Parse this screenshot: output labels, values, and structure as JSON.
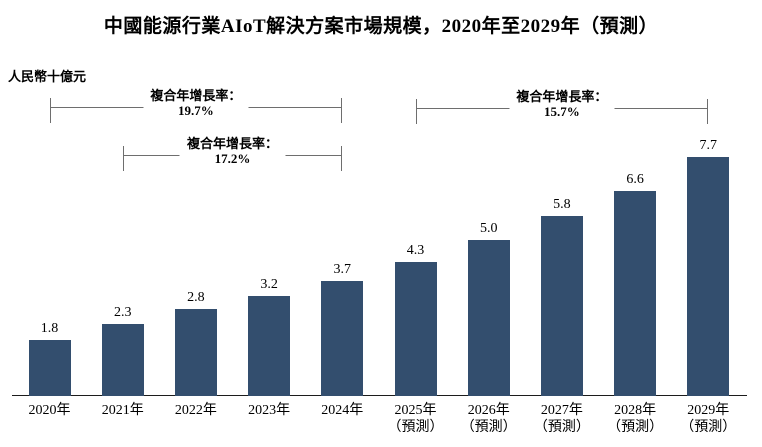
{
  "chart_data": {
    "type": "bar",
    "title": "中國能源行業AIoT解決方案市場規模，2020年至2029年（預測）",
    "ylabel": "人民幣十億元",
    "categories": [
      "2020年",
      "2021年",
      "2022年",
      "2023年",
      "2024年",
      "2025年",
      "2026年",
      "2027年",
      "2028年",
      "2029年"
    ],
    "notes": [
      "",
      "",
      "",
      "",
      "",
      "（預測）",
      "（預測）",
      "（預測）",
      "（預測）",
      "（預測）"
    ],
    "values": [
      1.8,
      2.3,
      2.8,
      3.2,
      3.7,
      4.3,
      5.0,
      5.8,
      6.6,
      7.7
    ],
    "value_labels": [
      "1.8",
      "2.3",
      "2.8",
      "3.2",
      "3.7",
      "4.3",
      "5.0",
      "5.8",
      "6.6",
      "7.7"
    ],
    "ylim": [
      0,
      8
    ],
    "grid": false,
    "legend": "none",
    "bar_color": "#334E6E",
    "annotations": [
      {
        "label": "複合年增長率：",
        "value": "19.7%",
        "start_index": 0,
        "end_index": 4
      },
      {
        "label": "複合年增長率：",
        "value": "17.2%",
        "start_index": 1,
        "end_index": 4
      },
      {
        "label": "複合年增長率：",
        "value": "15.7%",
        "start_index": 5,
        "end_index": 9
      }
    ]
  }
}
